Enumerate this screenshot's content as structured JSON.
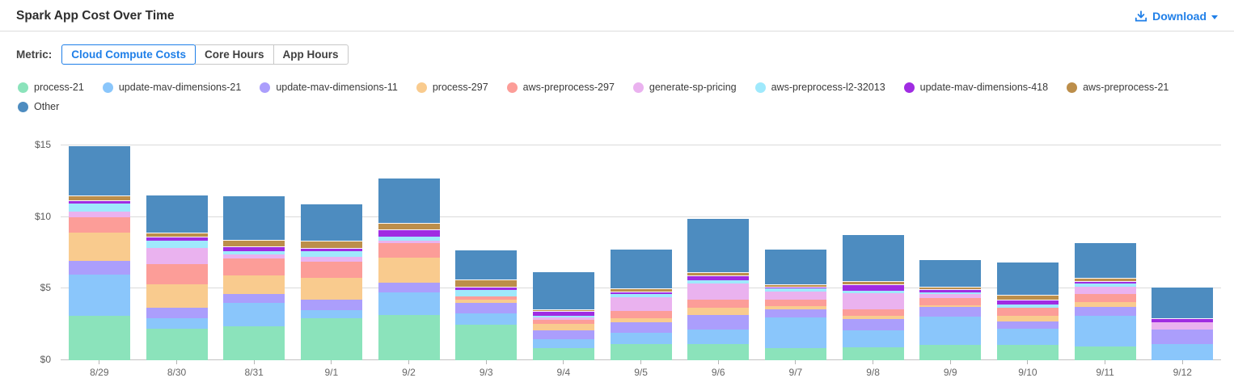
{
  "header": {
    "title": "Spark App Cost Over Time",
    "download_label": "Download"
  },
  "metric_bar": {
    "label": "Metric:",
    "options": [
      {
        "label": "Cloud Compute Costs",
        "selected": true
      },
      {
        "label": "Core Hours",
        "selected": false
      },
      {
        "label": "App Hours",
        "selected": false
      }
    ]
  },
  "colors": {
    "accent_blue": "#1f7fe8",
    "gridline": "#dadada",
    "axis_text": "#5a5a5a"
  },
  "chart_data": {
    "type": "bar",
    "stacked": true,
    "title": "Spark App Cost Over Time",
    "xlabel": "",
    "ylabel": "Cloud Compute Costs ($)",
    "grid": true,
    "legend_position": "top",
    "ylim": [
      0,
      15.6
    ],
    "yticks": [
      {
        "label": "$0",
        "value": 0
      },
      {
        "label": "$5",
        "value": 5
      },
      {
        "label": "$10",
        "value": 10
      },
      {
        "label": "$15",
        "value": 15
      }
    ],
    "categories": [
      "8/29",
      "8/30",
      "8/31",
      "9/1",
      "9/2",
      "9/3",
      "9/4",
      "9/5",
      "9/6",
      "9/7",
      "9/8",
      "9/9",
      "9/10",
      "9/11",
      "9/12"
    ],
    "series": [
      {
        "name": "process-21",
        "color": "#8BE3BB",
        "values": [
          3.13,
          2.19,
          2.38,
          2.95,
          3.15,
          2.47,
          0.84,
          1.11,
          1.11,
          0.84,
          0.88,
          1.07,
          1.07,
          0.94,
          0
        ]
      },
      {
        "name": "update-mav-dimensions-21",
        "color": "#8AC6FB",
        "values": [
          2.83,
          0.72,
          1.6,
          0.52,
          1.57,
          0.78,
          0.61,
          0.82,
          1.01,
          2.16,
          1.22,
          1.99,
          1.12,
          2.15,
          1.12
        ]
      },
      {
        "name": "update-mav-dimensions-11",
        "color": "#AB9EFC",
        "values": [
          1.0,
          0.75,
          0.67,
          0.75,
          0.68,
          0.73,
          0.65,
          0.7,
          1.05,
          0.57,
          0.75,
          0.69,
          0.53,
          0.61,
          1.0
        ]
      },
      {
        "name": "process-297",
        "color": "#F9CB8E",
        "values": [
          1.98,
          1.63,
          1.29,
          1.54,
          1.78,
          0.24,
          0.43,
          0.32,
          0.49,
          0.22,
          0.28,
          0.1,
          0.41,
          0.37,
          0
        ]
      },
      {
        "name": "aws-preprocess-297",
        "color": "#FC9D98",
        "values": [
          1.05,
          1.42,
          1.17,
          1.12,
          0.98,
          0.22,
          0.28,
          0.52,
          0.56,
          0.43,
          0.44,
          0.5,
          0.53,
          0.56,
          0
        ]
      },
      {
        "name": "generate-sp-pricing",
        "color": "#EAB2EF",
        "values": [
          0.4,
          1.13,
          0.26,
          0.34,
          0.2,
          0,
          0.19,
          0.94,
          1.16,
          0.56,
          1.12,
          0.25,
          0,
          0.53,
          0.51
        ]
      },
      {
        "name": "aws-preprocess-l2-32013",
        "color": "#9FE9FC",
        "values": [
          0.56,
          0.52,
          0.22,
          0.37,
          0.3,
          0.48,
          0.13,
          0.19,
          0.19,
          0.23,
          0.19,
          0.15,
          0.22,
          0.22,
          0
        ]
      },
      {
        "name": "update-mav-dimensions-418",
        "color": "#A02CE2",
        "values": [
          0.23,
          0.27,
          0.38,
          0.28,
          0.49,
          0.24,
          0.3,
          0.18,
          0.34,
          0.15,
          0.43,
          0.22,
          0.38,
          0.15,
          0.32
        ]
      },
      {
        "name": "aws-preprocess-21",
        "color": "#BC8E4A",
        "values": [
          0.33,
          0.31,
          0.41,
          0.48,
          0.45,
          0.47,
          0.14,
          0.23,
          0.22,
          0.15,
          0.22,
          0.19,
          0.33,
          0.23,
          0
        ]
      },
      {
        "name": "Other",
        "color": "#4D8CC0",
        "values": [
          3.45,
          2.59,
          3.08,
          2.56,
          3.09,
          2.06,
          2.58,
          2.74,
          3.75,
          2.44,
          3.23,
          1.84,
          2.25,
          2.44,
          2.15
        ]
      }
    ]
  }
}
